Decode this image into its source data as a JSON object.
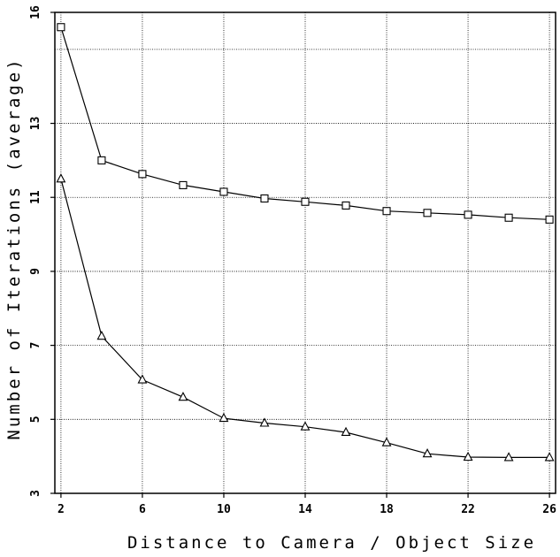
{
  "chart_data": {
    "type": "line",
    "title": "",
    "xlabel": "Distance to Camera / Object Size",
    "ylabel": "Number of Iterations (average)",
    "xlim": [
      1.7,
      26.3
    ],
    "ylim": [
      3,
      16
    ],
    "xticks": [
      2,
      6,
      10,
      14,
      18,
      22,
      26
    ],
    "yticks": [
      3,
      5,
      7,
      9,
      11,
      13,
      16
    ],
    "x_tick_labels": [
      "2",
      "6",
      "10",
      "14",
      "18",
      "22",
      "26"
    ],
    "y_tick_labels": [
      "3",
      "5",
      "7",
      "9",
      "11",
      "13",
      "16"
    ],
    "grid": true,
    "series": [
      {
        "marker": "square",
        "x": [
          2,
          4,
          6,
          8,
          10,
          12,
          14,
          16,
          18,
          20,
          22,
          24,
          26
        ],
        "y": [
          15.6,
          12.0,
          11.63,
          11.33,
          11.15,
          10.97,
          10.88,
          10.78,
          10.63,
          10.58,
          10.53,
          10.45,
          10.4
        ]
      },
      {
        "marker": "triangle",
        "x": [
          2,
          4,
          6,
          8,
          10,
          12,
          14,
          16,
          18,
          20,
          22,
          24,
          26
        ],
        "y": [
          11.5,
          7.25,
          6.07,
          5.6,
          5.03,
          4.9,
          4.8,
          4.65,
          4.37,
          4.07,
          3.98,
          3.97,
          3.97
        ]
      }
    ]
  }
}
